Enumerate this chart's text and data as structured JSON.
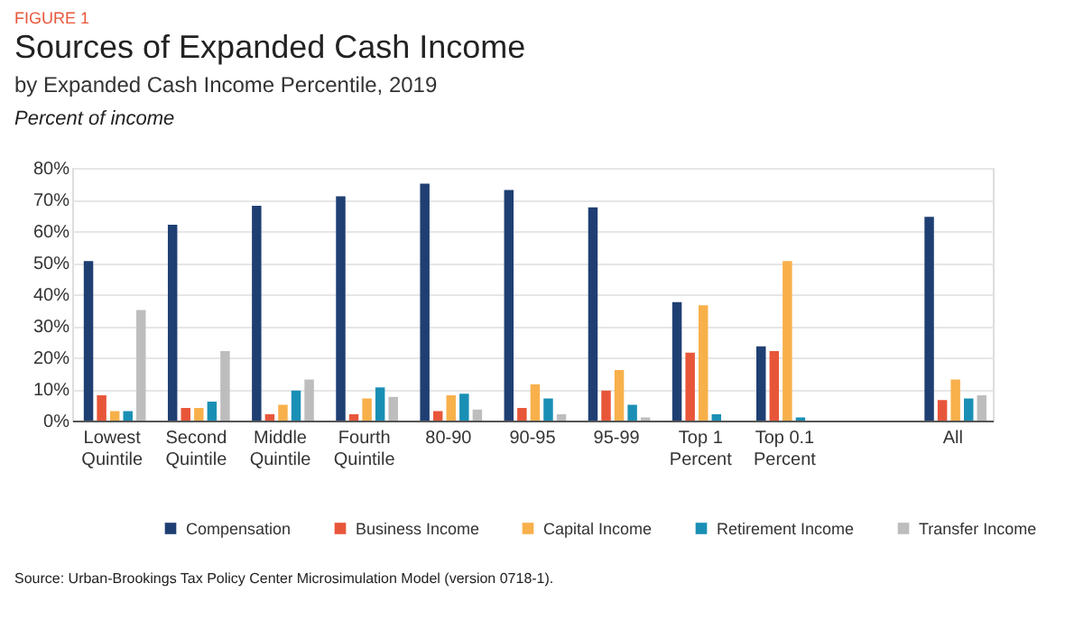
{
  "chart_data": {
    "type": "bar",
    "title": "Sources of Expanded Cash Income",
    "subtitle": "by Expanded Cash Income Percentile, 2019",
    "ylabel": "Percent of income",
    "annotations": [
      "FIGURE 1",
      "Source: Urban-Brookings Tax Policy Center Microsimulation Model (version 0718-1)."
    ],
    "categories": [
      "Lowest Quintile",
      "Second Quintile",
      "Middle Quintile",
      "Fourth Quintile",
      "80-90",
      "90-95",
      "95-99",
      "Top 1 Percent",
      "Top 0.1 Percent",
      null,
      "All"
    ],
    "series": [
      {
        "name": "Compensation",
        "color": "#1f3f73",
        "values": [
          50.5,
          62,
          68,
          71,
          75,
          73,
          67.5,
          37.5,
          23.5,
          null,
          64.5
        ]
      },
      {
        "name": "Business Income",
        "color": "#e8563a",
        "values": [
          8,
          4,
          2,
          2,
          3,
          4,
          9.5,
          21.5,
          22,
          null,
          6.5
        ]
      },
      {
        "name": "Capital Income",
        "color": "#f8b04b",
        "values": [
          3,
          4,
          5,
          7,
          8,
          11.5,
          16,
          36.5,
          50.5,
          null,
          13
        ]
      },
      {
        "name": "Retirement Income",
        "color": "#1a8fb5",
        "values": [
          3,
          6,
          9.5,
          10.5,
          8.5,
          7,
          5,
          2,
          1,
          null,
          7
        ]
      },
      {
        "name": "Transfer Income",
        "color": "#bdbdbd",
        "values": [
          35,
          22,
          13,
          7.5,
          3.5,
          2,
          1,
          null,
          null,
          null,
          8
        ]
      }
    ],
    "ylim": [
      0,
      80
    ],
    "yticks": [
      {
        "value": 0,
        "label": "0%"
      },
      {
        "value": 10,
        "label": "10%"
      },
      {
        "value": 20,
        "label": "20%"
      },
      {
        "value": 30,
        "label": "30%"
      },
      {
        "value": 40,
        "label": "40%"
      },
      {
        "value": 50,
        "label": "50%"
      },
      {
        "value": 60,
        "label": "60%"
      },
      {
        "value": 70,
        "label": "70%"
      },
      {
        "value": 80,
        "label": "80%"
      }
    ],
    "grid": "y",
    "legend": "bottom"
  }
}
